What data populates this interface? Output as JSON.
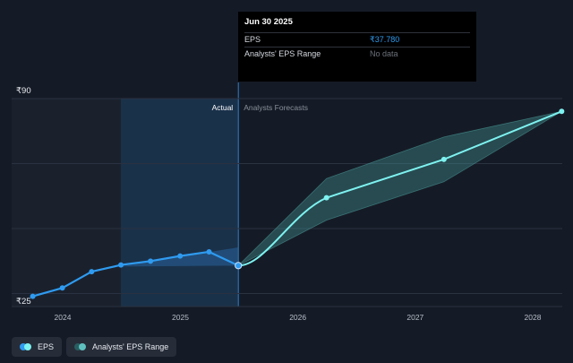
{
  "tooltip": {
    "date": "Jun 30 2025",
    "rows": [
      {
        "label": "EPS",
        "value": "₹37.780"
      },
      {
        "label": "Analysts' EPS Range",
        "value": "No data"
      }
    ]
  },
  "legend": [
    {
      "label": "EPS",
      "colors": [
        "#2f9bf0",
        "#7ef2f0"
      ]
    },
    {
      "label": "Analysts' EPS Range",
      "colors": [
        "#2a5d60",
        "#5fbfbf"
      ]
    }
  ],
  "chart_data": {
    "type": "line",
    "title": "",
    "xlabel": "",
    "ylabel": "",
    "ylim": [
      25,
      90
    ],
    "y_tick_labels": [
      "₹90",
      "₹25"
    ],
    "x_ticks": [
      "2024",
      "2025",
      "2026",
      "2027",
      "2028"
    ],
    "region_labels": {
      "actual": "Actual",
      "forecast": "Analysts Forecasts"
    },
    "colors": {
      "actual": "#2f9bf0",
      "forecast": "#7ef2f0",
      "range": "#4aa6a3",
      "highlight": "#1c3a57",
      "background": "#151b26"
    },
    "series": [
      {
        "name": "EPS",
        "kind": "actual",
        "x": [
          "2023-09-30",
          "2023-12-31",
          "2024-03-31",
          "2024-06-30",
          "2024-09-30",
          "2024-12-31",
          "2025-03-31",
          "2025-06-30"
        ],
        "values": [
          28.2,
          30.8,
          35.9,
          38.0,
          39.2,
          40.8,
          42.1,
          37.8
        ]
      },
      {
        "name": "Analysts Forecasts",
        "kind": "forecast",
        "x": [
          "2025-06-30",
          "2026-03-31",
          "2027-03-31",
          "2028-03-31"
        ],
        "values": [
          37.8,
          59.0,
          71.0,
          86.0
        ]
      },
      {
        "name": "Analysts' EPS Range",
        "kind": "range",
        "x": [
          "2025-06-30",
          "2026-03-31",
          "2027-03-31",
          "2028-03-31"
        ],
        "low": [
          37.8,
          52.0,
          64.0,
          86.0
        ],
        "high": [
          37.8,
          65.0,
          78.0,
          86.0
        ]
      }
    ]
  }
}
